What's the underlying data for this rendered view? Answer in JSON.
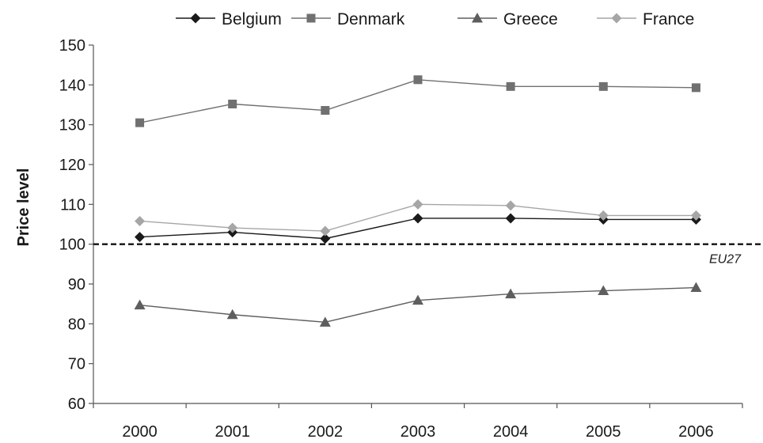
{
  "chart_data": {
    "type": "line",
    "title": "",
    "xlabel": "",
    "ylabel": "Price level",
    "categories": [
      "2000",
      "2001",
      "2002",
      "2003",
      "2004",
      "2005",
      "2006"
    ],
    "ylim": [
      60,
      150
    ],
    "yticks": [
      60,
      70,
      80,
      90,
      100,
      110,
      120,
      130,
      140,
      150
    ],
    "grid": false,
    "legend_position": "top",
    "series": [
      {
        "name": "Belgium",
        "marker": "diamond",
        "color": "#1a1a1a",
        "values": [
          101.8,
          103.0,
          101.4,
          106.5,
          106.5,
          106.2,
          106.2
        ]
      },
      {
        "name": "Denmark",
        "marker": "square",
        "color": "#707070",
        "values": [
          130.5,
          135.2,
          133.6,
          141.3,
          139.6,
          139.6,
          139.3
        ]
      },
      {
        "name": "Greece",
        "marker": "triangle",
        "color": "#5e5e5e",
        "values": [
          84.7,
          82.3,
          80.4,
          85.9,
          87.5,
          88.3,
          89.1
        ]
      },
      {
        "name": "France",
        "marker": "diamond",
        "color": "#a6a6a6",
        "values": [
          105.8,
          104.1,
          103.3,
          110.0,
          109.7,
          107.2,
          107.2
        ]
      }
    ],
    "reference_line": {
      "value": 100,
      "label": "EU27",
      "style": "dashed"
    }
  }
}
